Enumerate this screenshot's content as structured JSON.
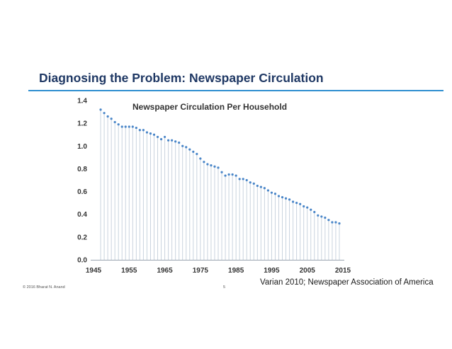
{
  "slide": {
    "title": "Diagnosing the Problem: Newspaper Circulation",
    "citation": "Varian 2010; Newspaper Association of America",
    "copyright": "© 2016 Bharat N. Anand",
    "page_number": "5"
  },
  "colors": {
    "title": "#1f3864",
    "rule": "#2e8fd0",
    "marker": "#4a86c8",
    "drop_line": "#c9d3de",
    "axis_text": "#333333"
  },
  "chart_data": {
    "type": "scatter",
    "title": "Newspaper Circulation Per Household",
    "xlabel": "",
    "ylabel": "",
    "xlim": [
      1945,
      2015
    ],
    "ylim": [
      0.0,
      1.4
    ],
    "x_ticks": [
      "1945",
      "1955",
      "1965",
      "1975",
      "1985",
      "1995",
      "2005",
      "2015"
    ],
    "y_ticks": [
      "0.0",
      "0.2",
      "0.4",
      "0.6",
      "0.8",
      "1.0",
      "1.2",
      "1.4"
    ],
    "grid": false,
    "drop_lines": true,
    "x": [
      1947,
      1948,
      1949,
      1950,
      1951,
      1952,
      1953,
      1954,
      1955,
      1956,
      1957,
      1958,
      1959,
      1960,
      1961,
      1962,
      1963,
      1964,
      1965,
      1966,
      1967,
      1968,
      1969,
      1970,
      1971,
      1972,
      1973,
      1974,
      1975,
      1976,
      1977,
      1978,
      1979,
      1980,
      1981,
      1982,
      1983,
      1984,
      1985,
      1986,
      1987,
      1988,
      1989,
      1990,
      1991,
      1992,
      1993,
      1994,
      1995,
      1996,
      1997,
      1998,
      1999,
      2000,
      2001,
      2002,
      2003,
      2004,
      2005,
      2006,
      2007,
      2008,
      2009,
      2010,
      2011,
      2012,
      2013,
      2014
    ],
    "values": [
      1.32,
      1.29,
      1.26,
      1.24,
      1.21,
      1.19,
      1.17,
      1.17,
      1.17,
      1.17,
      1.16,
      1.14,
      1.14,
      1.12,
      1.11,
      1.1,
      1.08,
      1.06,
      1.08,
      1.05,
      1.05,
      1.04,
      1.03,
      1.0,
      0.99,
      0.97,
      0.95,
      0.93,
      0.89,
      0.86,
      0.84,
      0.83,
      0.82,
      0.81,
      0.77,
      0.74,
      0.75,
      0.75,
      0.74,
      0.71,
      0.71,
      0.7,
      0.68,
      0.67,
      0.65,
      0.64,
      0.63,
      0.61,
      0.59,
      0.58,
      0.56,
      0.55,
      0.54,
      0.53,
      0.51,
      0.5,
      0.49,
      0.47,
      0.46,
      0.44,
      0.42,
      0.39,
      0.38,
      0.37,
      0.35,
      0.33,
      0.33,
      0.32
    ]
  }
}
